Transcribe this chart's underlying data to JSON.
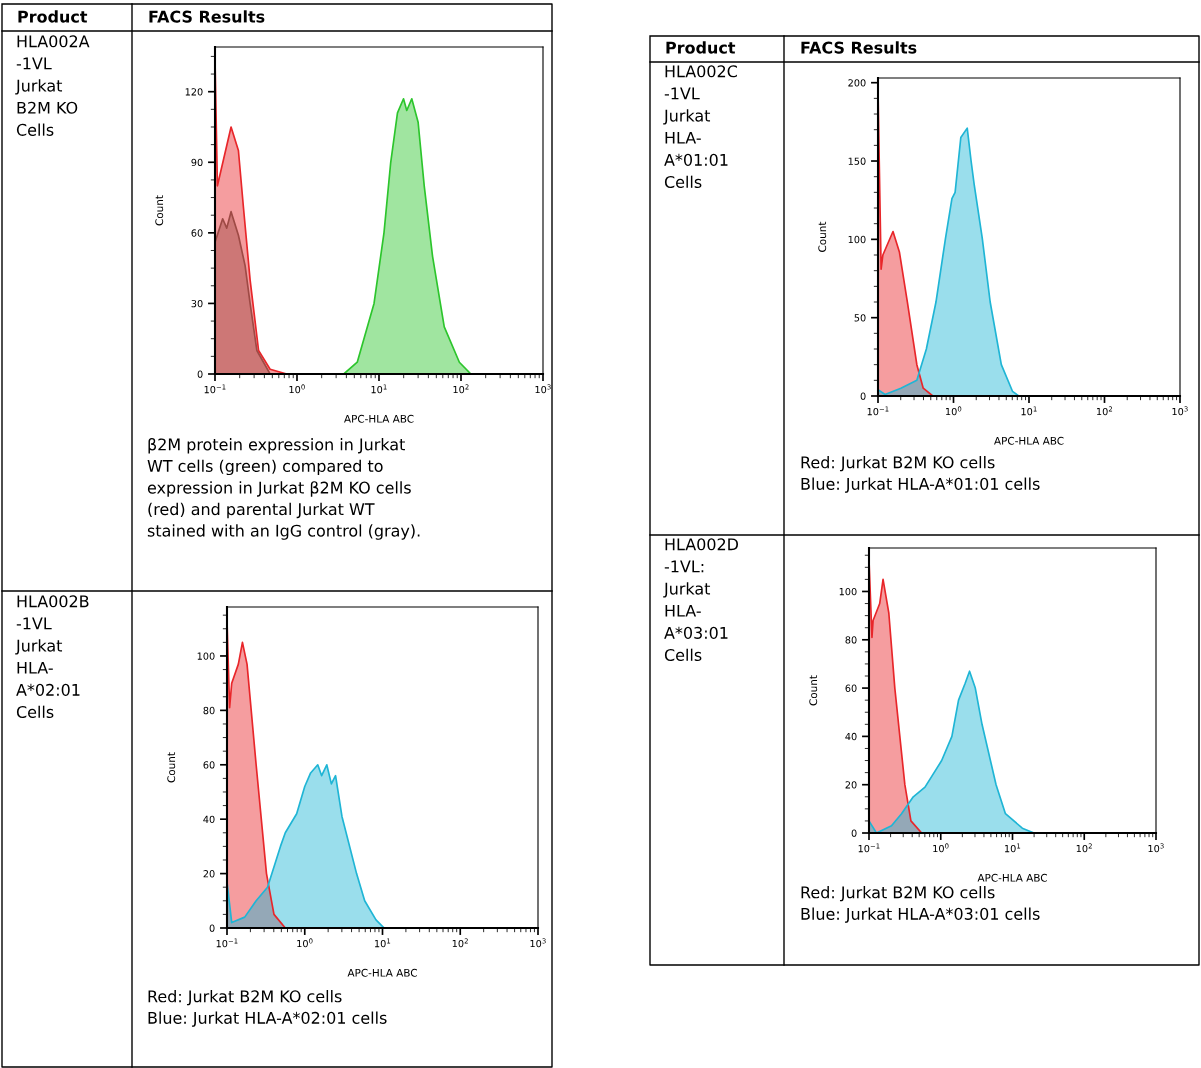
{
  "chart_data": [
    {
      "type": "area",
      "xlabel": "APC-HLA ABC",
      "ylabel": "Count",
      "log": "x",
      "grid": false,
      "annotations": [
        "Product",
        "FACS Results",
        "HLA002A\n-1VL\nJurkat\nB2M KO\nCells",
        "β2M protein expression in Jurkat\nWT cells (green) compared to\nexpression in Jurkat β2M KO cells\n(red) and parental Jurkat WT\nstained with an IgG control (gray)."
      ],
      "xlim": [
        0.1,
        1000
      ],
      "xticks": [
        {
          "value": 0.1,
          "label": "10$^{−1}$"
        },
        {
          "value": 1,
          "label": "10$^{0}$"
        },
        {
          "value": 10,
          "label": "10$^{1}$"
        },
        {
          "value": 100,
          "label": "10$^{2}$"
        },
        {
          "value": 1000,
          "label": "10$^{3}$"
        }
      ],
      "ylim": [
        0,
        139
      ],
      "yticks": [
        0,
        30,
        60,
        90,
        120
      ],
      "series": [
        {
          "color": "#e8262a",
          "x": [
            0.1,
            0.1,
            0.107,
            0.157,
            0.193,
            0.222,
            0.268,
            0.34,
            0.47,
            0.75
          ],
          "values": [
            0,
            134,
            80,
            105,
            95,
            71,
            40,
            10,
            2,
            0
          ]
        },
        {
          "color": "#9e4a45",
          "x": [
            0.1,
            0.1,
            0.124,
            0.139,
            0.157,
            0.193,
            0.233,
            0.268,
            0.324,
            0.47
          ],
          "values": [
            0,
            56,
            66,
            62,
            69,
            59,
            46,
            30,
            10,
            0
          ]
        },
        {
          "color": "#2cc52c",
          "x": [
            3.72,
            5.43,
            8.7,
            11.5,
            13.9,
            16.8,
            19.9,
            21.8,
            25.1,
            30,
            35.6,
            45,
            62.5,
            95.5,
            132
          ],
          "values": [
            0,
            5,
            30,
            60,
            90,
            111,
            117,
            112,
            117,
            107,
            80,
            50,
            20,
            5,
            0
          ]
        }
      ]
    },
    {
      "type": "area",
      "xlabel": "APC-HLA ABC",
      "ylabel": "Count",
      "log": "x",
      "grid": false,
      "annotations": [
        "HLA002B\n-1VL\nJurkat\nHLA-\nA*02:01\nCells",
        "Red: Jurkat B2M KO cells\nBlue: Jurkat HLA-A*02:01 cells"
      ],
      "xlim": [
        0.1,
        1000
      ],
      "xticks": [
        {
          "value": 0.1,
          "label": "10$^{−1}$"
        },
        {
          "value": 1,
          "label": "10$^{0}$"
        },
        {
          "value": 10,
          "label": "10$^{1}$"
        },
        {
          "value": 100,
          "label": "10$^{2}$"
        },
        {
          "value": 1000,
          "label": "10$^{3}$"
        }
      ],
      "ylim": [
        0,
        118
      ],
      "yticks": [
        0,
        20,
        40,
        60,
        80,
        100
      ],
      "series": [
        {
          "color": "#e8262a",
          "x": [
            0.1,
            0.1,
            0.108,
            0.115,
            0.14,
            0.158,
            0.181,
            0.237,
            0.322,
            0.402,
            0.562
          ],
          "values": [
            0,
            113,
            81,
            90,
            97,
            105,
            97,
            60,
            20,
            5,
            0
          ]
        },
        {
          "color": "#1fb5d5",
          "x": [
            0.1,
            0.1,
            0.115,
            0.169,
            0.237,
            0.332,
            0.487,
            0.562,
            0.787,
            1,
            1.19,
            1.47,
            1.65,
            1.92,
            2.2,
            2.49,
            3.01,
            4.64,
            5.9,
            8.25,
            10.5
          ],
          "values": [
            0,
            17,
            2,
            4,
            10,
            15,
            30,
            35,
            42,
            52,
            57,
            60,
            56,
            60,
            53,
            56,
            41,
            20,
            10,
            3,
            0
          ]
        }
      ]
    },
    {
      "type": "area",
      "xlabel": "APC-HLA ABC",
      "ylabel": "Count",
      "log": "x",
      "grid": false,
      "annotations": [
        "Product",
        "FACS Results",
        "HLA002C\n-1VL\nJurkat\nHLA-\nA*01:01\nCells",
        "Red: Jurkat B2M KO cells\nBlue: Jurkat HLA-A*01:01 cells"
      ],
      "xlim": [
        0.1,
        1000
      ],
      "xticks": [
        {
          "value": 0.1,
          "label": "10$^{−1}$"
        },
        {
          "value": 1,
          "label": "10$^{0}$"
        },
        {
          "value": 10,
          "label": "10$^{1}$"
        },
        {
          "value": 100,
          "label": "10$^{2}$"
        },
        {
          "value": 1000,
          "label": "10$^{3}$"
        }
      ],
      "ylim": [
        0,
        203
      ],
      "yticks": [
        0,
        50,
        100,
        150,
        200
      ],
      "series": [
        {
          "color": "#e8262a",
          "x": [
            0.1,
            0.1,
            0.11,
            0.116,
            0.158,
            0.192,
            0.245,
            0.327,
            0.397,
            0.532
          ],
          "values": [
            0,
            195,
            81,
            90,
            105,
            92,
            60,
            20,
            5,
            0
          ]
        },
        {
          "color": "#1fb5d5",
          "x": [
            0.1,
            0.1,
            0.124,
            0.201,
            0.327,
            0.437,
            0.586,
            0.785,
            0.953,
            1.05,
            1.25,
            1.52,
            1.71,
            1.88,
            2.4,
            3.06,
            4.3,
            6.04,
            7.33
          ],
          "values": [
            0,
            4,
            1,
            5,
            10,
            30,
            60,
            101,
            126,
            130,
            165,
            171,
            150,
            135,
            101,
            60,
            20,
            3,
            0
          ]
        }
      ]
    },
    {
      "type": "area",
      "xlabel": "APC-HLA ABC",
      "ylabel": "Count",
      "log": "x",
      "grid": false,
      "annotations": [
        "HLA002D\n-1VL:\nJurkat\nHLA-\nA*03:01\nCells",
        "Red: Jurkat B2M KO cells\nBlue: Jurkat HLA-A*03:01 cells"
      ],
      "xlim": [
        0.1,
        1000
      ],
      "xticks": [
        {
          "value": 0.1,
          "label": "10$^{−1}$"
        },
        {
          "value": 1,
          "label": "10$^{0}$"
        },
        {
          "value": 10,
          "label": "10$^{1}$"
        },
        {
          "value": 100,
          "label": "10$^{2}$"
        },
        {
          "value": 1000,
          "label": "10$^{3}$"
        }
      ],
      "ylim": [
        0,
        118
      ],
      "yticks": [
        0,
        20,
        40,
        60,
        80,
        100
      ],
      "series": [
        {
          "color": "#e8262a",
          "x": [
            0.1,
            0.1,
            0.11,
            0.114,
            0.141,
            0.157,
            0.189,
            0.229,
            0.316,
            0.384,
            0.542
          ],
          "values": [
            0,
            113,
            81,
            88,
            95,
            105,
            91,
            60,
            20,
            5,
            0
          ]
        },
        {
          "color": "#1fb5d5",
          "x": [
            0.1,
            0.1,
            0.127,
            0.206,
            0.284,
            0.414,
            0.603,
            1.03,
            1.43,
            1.77,
            2.19,
            2.52,
            3.03,
            3.76,
            5.9,
            7.97,
            13.7,
            19.9
          ],
          "values": [
            0,
            5,
            0,
            3,
            8,
            15,
            19,
            30,
            40,
            55,
            62,
            67,
            60,
            45,
            20,
            8,
            2,
            0
          ]
        }
      ]
    }
  ]
}
